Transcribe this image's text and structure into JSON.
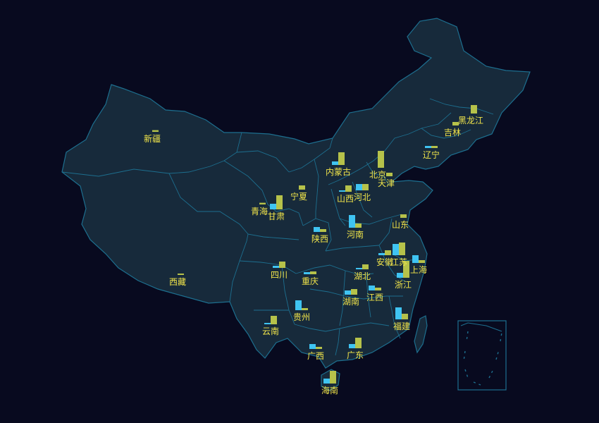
{
  "map": {
    "colors": {
      "background": "#080a1f",
      "land": "#172a3b",
      "border": "#1d6f8f",
      "label": "#f0e44a",
      "bar_a": "#3fc4f2",
      "bar_b": "#b6c24a"
    },
    "provinces": [
      {
        "id": "xinjiang",
        "name": "新疆",
        "a": 0,
        "b": 0.12
      },
      {
        "id": "xizang",
        "name": "西藏",
        "a": 0,
        "b": 0.05
      },
      {
        "id": "qinghai",
        "name": "青海",
        "a": 0,
        "b": 0.12
      },
      {
        "id": "gansu",
        "name": "甘肃",
        "a": 0.4,
        "b": 1.0
      },
      {
        "id": "ningxia",
        "name": "宁夏",
        "a": 0,
        "b": 0.3
      },
      {
        "id": "neimenggu",
        "name": "内蒙古",
        "a": 0.25,
        "b": 0.9
      },
      {
        "id": "heilongjiang",
        "name": "黑龙江",
        "a": 0,
        "b": 0.6
      },
      {
        "id": "jilin",
        "name": "吉林",
        "a": 0,
        "b": 0.25
      },
      {
        "id": "liaoning",
        "name": "辽宁",
        "a": 0.15,
        "b": 0.15
      },
      {
        "id": "beijing",
        "name": "北京",
        "a": 0,
        "b": 1.2
      },
      {
        "id": "tianjin",
        "name": "天津",
        "a": 0,
        "b": 0.25
      },
      {
        "id": "hebei",
        "name": "河北",
        "a": 0.45,
        "b": 0.45
      },
      {
        "id": "shanxi",
        "name": "山西",
        "a": 0.1,
        "b": 0.45
      },
      {
        "id": "shandong",
        "name": "山东",
        "a": 0,
        "b": 0.25
      },
      {
        "id": "henan",
        "name": "河南",
        "a": 0.9,
        "b": 0.3
      },
      {
        "id": "shaanxi",
        "name": "陕西",
        "a": 0.35,
        "b": 0.2
      },
      {
        "id": "sichuan",
        "name": "四川",
        "a": 0.15,
        "b": 0.45
      },
      {
        "id": "chongqing",
        "name": "重庆",
        "a": 0.15,
        "b": 0.2
      },
      {
        "id": "hubei",
        "name": "湖北",
        "a": 0.1,
        "b": 0.35
      },
      {
        "id": "anhui",
        "name": "安徽",
        "a": 0.15,
        "b": 0.35
      },
      {
        "id": "jiangsu",
        "name": "江苏",
        "a": 0.8,
        "b": 0.9
      },
      {
        "id": "shanghai",
        "name": "上海",
        "a": 0.55,
        "b": 0.2
      },
      {
        "id": "zhejiang",
        "name": "浙江",
        "a": 0.35,
        "b": 1.2
      },
      {
        "id": "jiangxi",
        "name": "江西",
        "a": 0.35,
        "b": 0.2
      },
      {
        "id": "hunan",
        "name": "湖南",
        "a": 0.3,
        "b": 0.4
      },
      {
        "id": "guizhou",
        "name": "贵州",
        "a": 0.7,
        "b": 0.15
      },
      {
        "id": "yunnan",
        "name": "云南",
        "a": 0.1,
        "b": 0.6
      },
      {
        "id": "guangxi",
        "name": "广西",
        "a": 0.35,
        "b": 0.15
      },
      {
        "id": "guangdong",
        "name": "广东",
        "a": 0.3,
        "b": 0.75
      },
      {
        "id": "fujian",
        "name": "福建",
        "a": 0.85,
        "b": 0.4
      },
      {
        "id": "hainan",
        "name": "海南",
        "a": 0.35,
        "b": 0.9
      }
    ]
  }
}
